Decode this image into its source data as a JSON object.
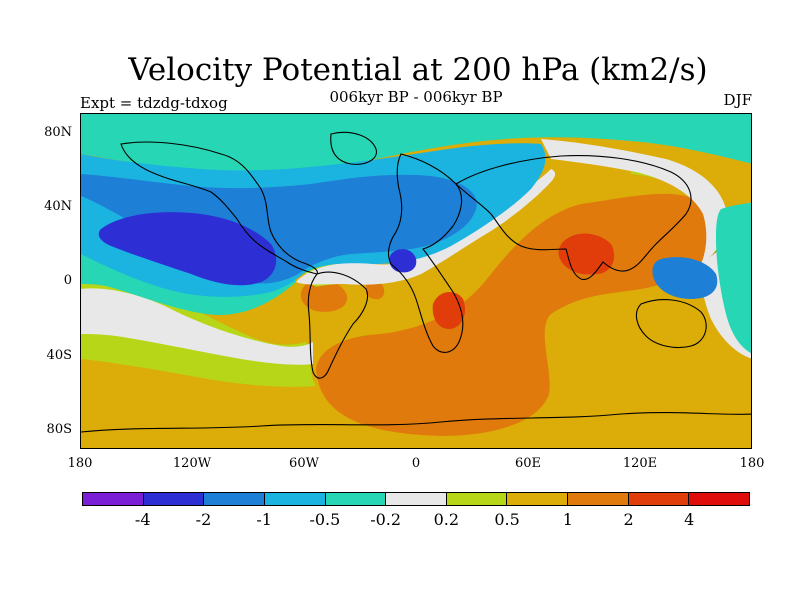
{
  "header": {
    "title": "Velocity Potential at 200 hPa (km2/s)",
    "subtitle": "006kyr BP - 006kyr BP",
    "left_label": "Expt = tdzdg-tdxog",
    "right_label": "DJF"
  },
  "axes": {
    "lat_labels": [
      "80N",
      "40N",
      "0",
      "40S",
      "80S"
    ],
    "lon_labels": [
      "180",
      "120W",
      "60W",
      "0",
      "60E",
      "120E",
      "180"
    ]
  },
  "colorbar": {
    "colors": [
      "#7a1fd6",
      "#2d2fd4",
      "#1d7fd6",
      "#1bb4e0",
      "#26d6b4",
      "#e8e8e8",
      "#b6d617",
      "#dcac09",
      "#e07a0c",
      "#e03d0b",
      "#e00d0d"
    ],
    "labels": [
      "-4",
      "-2",
      "-1",
      "-0.5",
      "-0.2",
      "0.2",
      "0.5",
      "1",
      "2",
      "4"
    ]
  },
  "map": {
    "region_fills": {
      "background": "#dcac09",
      "strong_positive": "#e03d0b",
      "positive": "#e07a0c",
      "weak_positive": "#b6d617",
      "neutral": "#e8e8e8",
      "weak_negative": "#26d6b4",
      "negative": "#1bb4e0",
      "more_negative": "#1d7fd6",
      "strong_negative": "#2d2fd4"
    }
  }
}
